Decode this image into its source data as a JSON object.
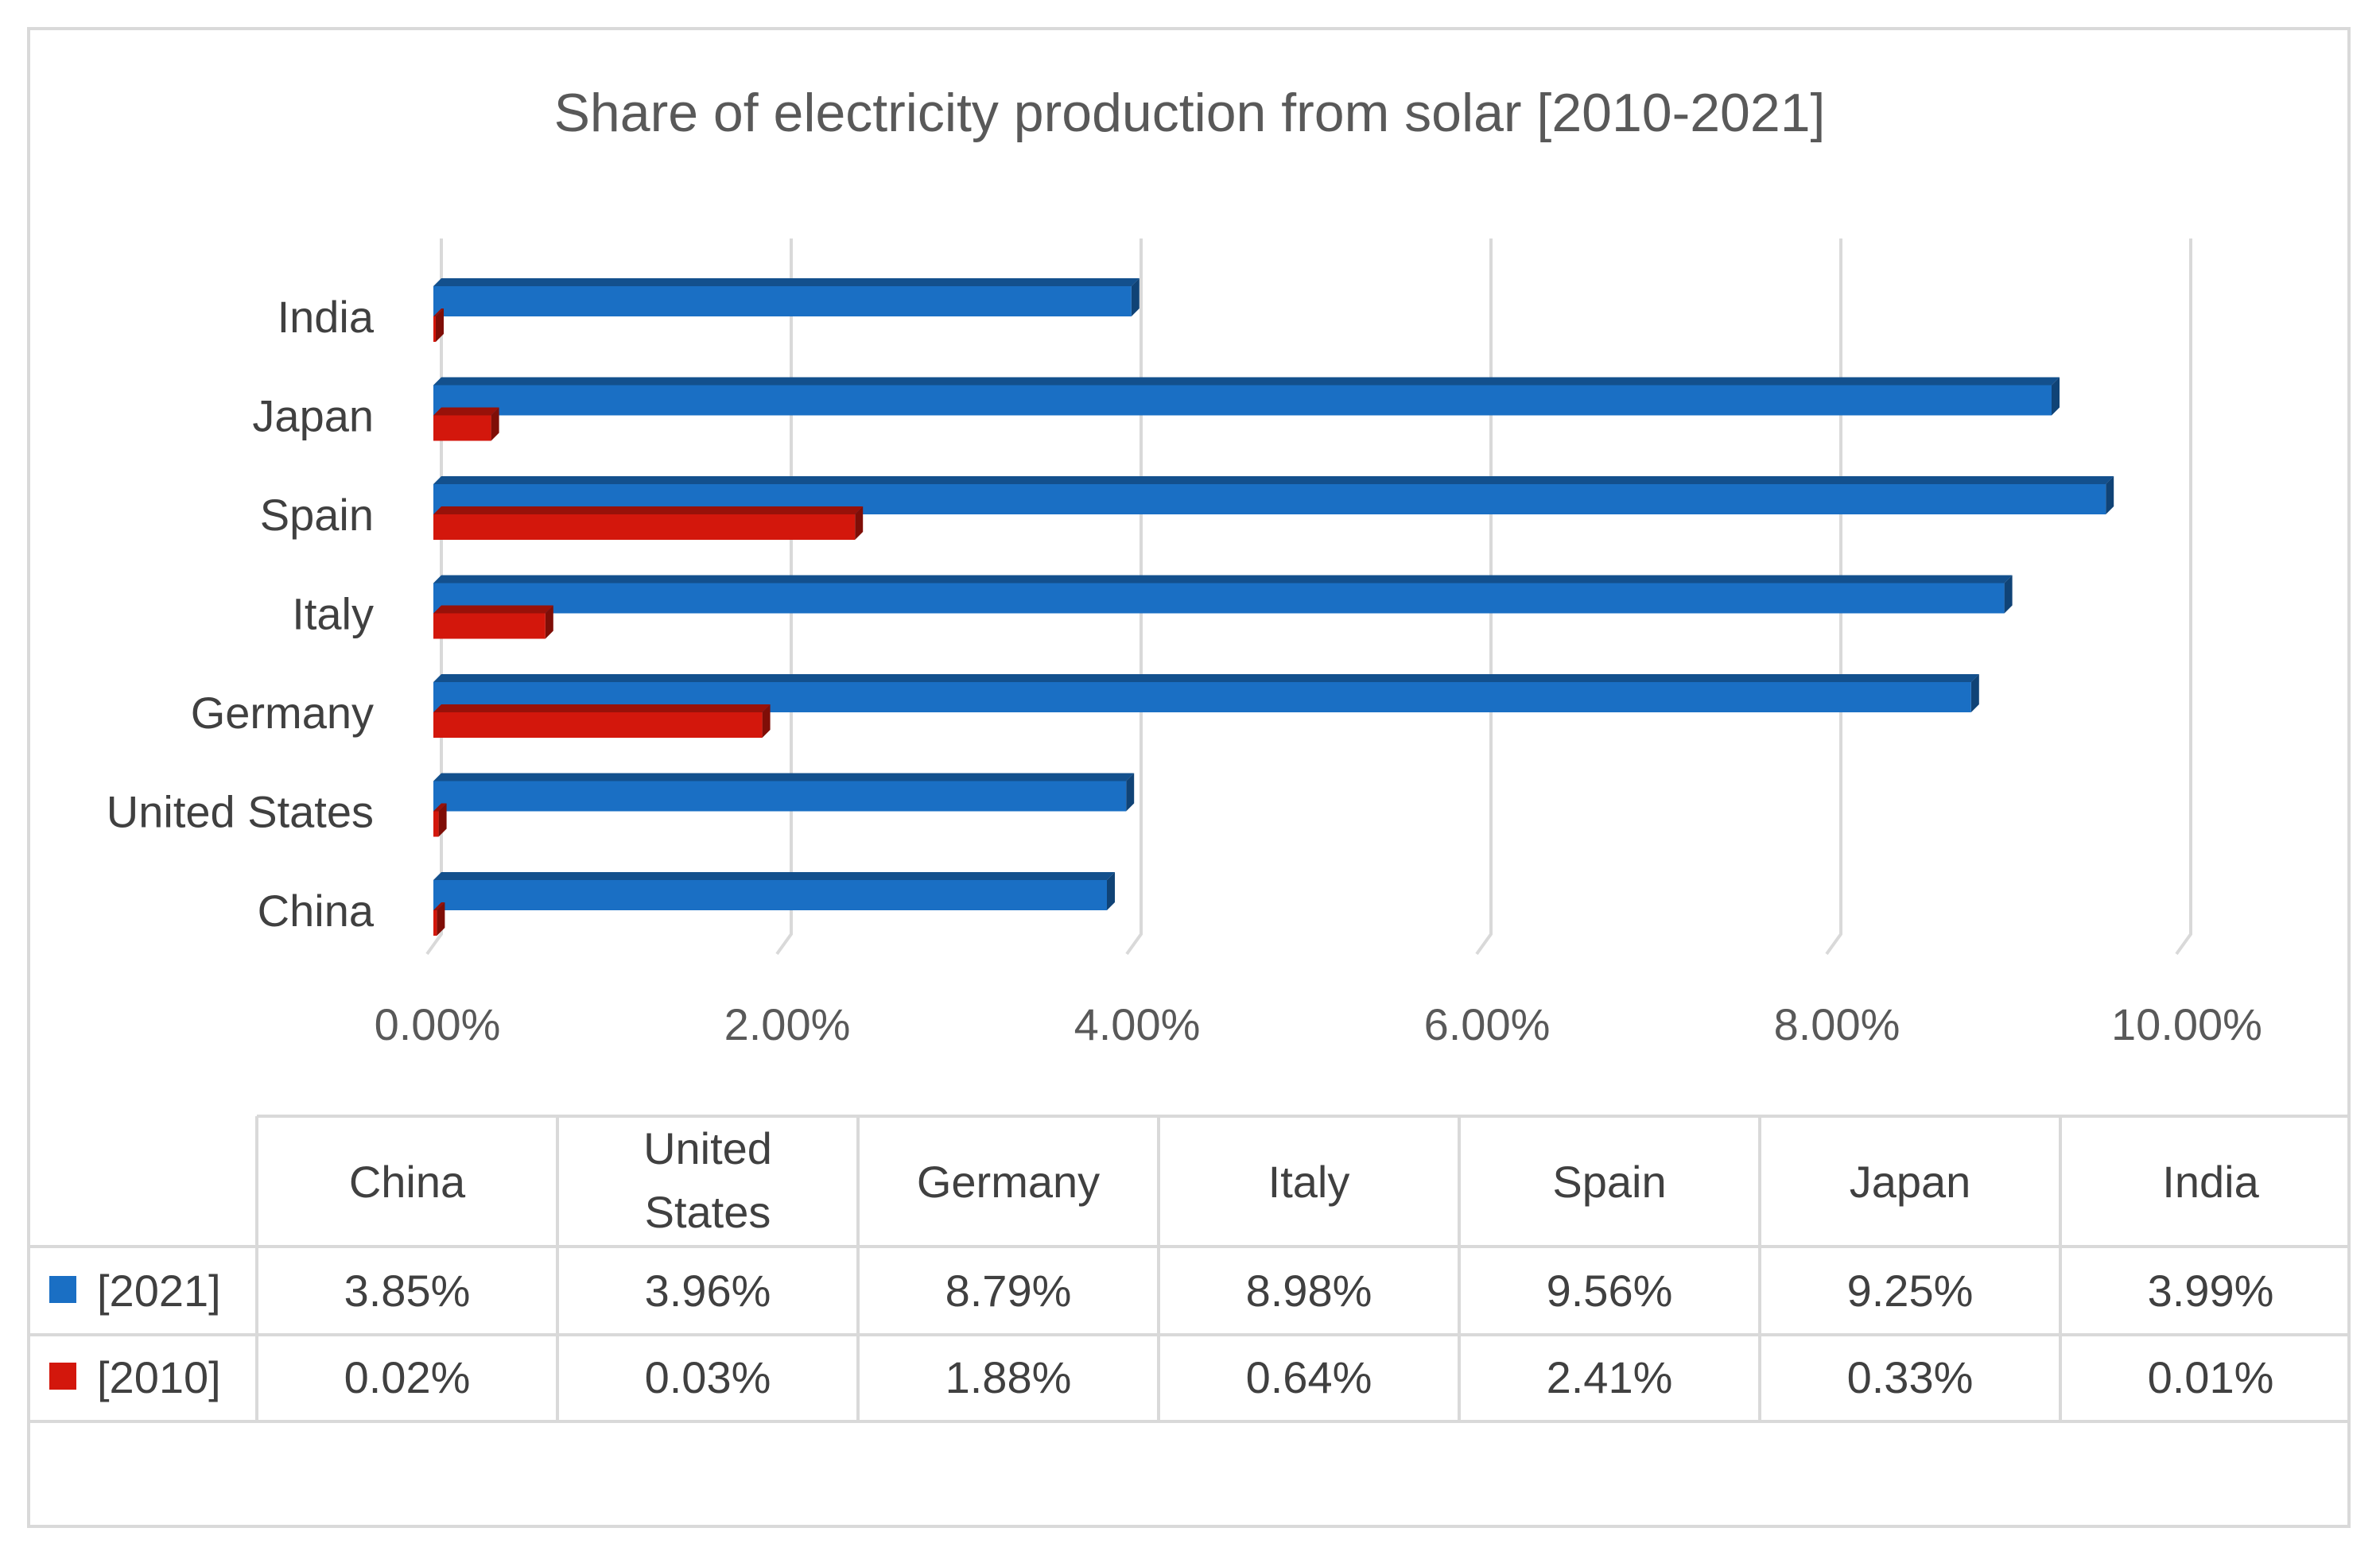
{
  "chart_data": {
    "type": "bar",
    "orientation": "horizontal",
    "style": "3d",
    "title": "Share of electricity production from solar [2010-2021]",
    "categories": [
      "China",
      "United States",
      "Germany",
      "Italy",
      "Spain",
      "Japan",
      "India"
    ],
    "table_header_labels": [
      "China",
      "United\nStates",
      "Germany",
      "Italy",
      "Spain",
      "Japan",
      "India"
    ],
    "series": [
      {
        "name": "[2021]",
        "color": "#1a6fc4",
        "values": [
          3.85,
          3.96,
          8.79,
          8.98,
          9.56,
          9.25,
          3.99
        ],
        "labels": [
          "3.85%",
          "3.96%",
          "8.79%",
          "8.98%",
          "9.56%",
          "9.25%",
          "3.99%"
        ]
      },
      {
        "name": "[2010]",
        "color": "#d3170c",
        "values": [
          0.02,
          0.03,
          1.88,
          0.64,
          2.41,
          0.33,
          0.01
        ],
        "labels": [
          "0.02%",
          "0.03%",
          "1.88%",
          "0.64%",
          "2.41%",
          "0.33%",
          "0.01%"
        ]
      }
    ],
    "xlim": [
      0,
      10
    ],
    "xticks": [
      "0.00%",
      "2.00%",
      "4.00%",
      "6.00%",
      "8.00%",
      "10.00%"
    ],
    "xlabel": "",
    "ylabel": "",
    "grid": true,
    "legend": "data-table"
  }
}
